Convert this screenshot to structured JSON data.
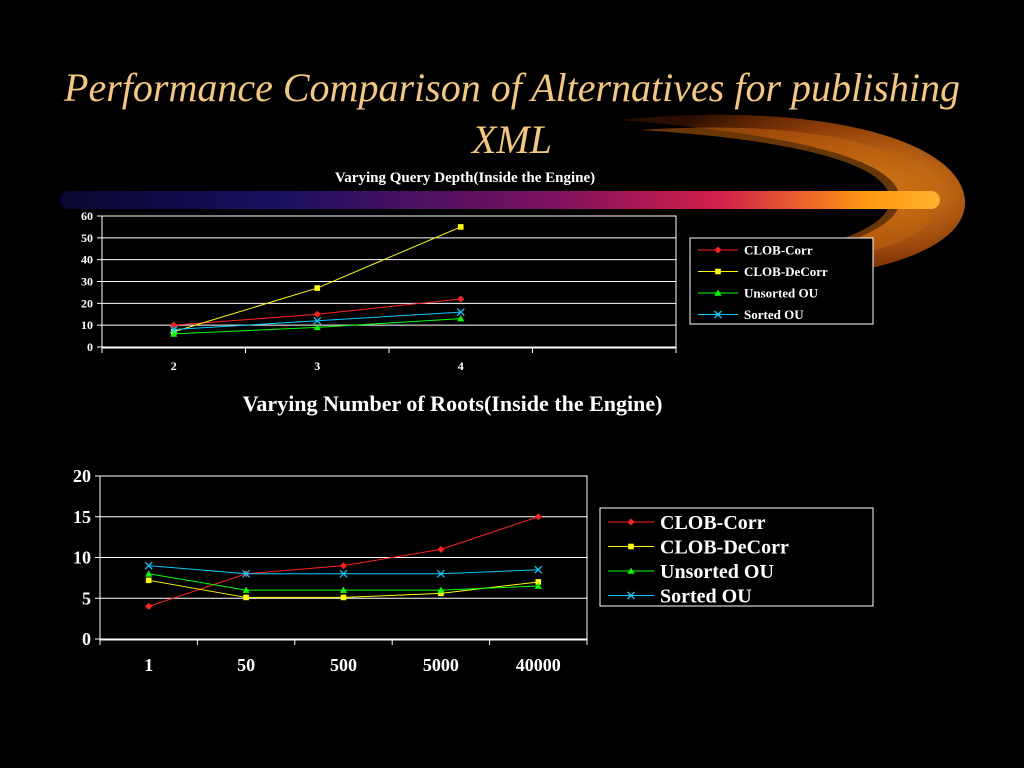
{
  "slide": {
    "title": "Performance Comparison of Alternatives for publishing XML"
  },
  "colors": {
    "title": "#F5C77A",
    "background": "#000000",
    "grid": "#FFFFFF",
    "swoosh_start": "#1A1060",
    "swoosh_mid": "#C0144A",
    "swoosh_end": "#FF9A10"
  },
  "chart_data": [
    {
      "type": "line",
      "title": "Varying Query Depth(Inside the Engine)",
      "categories": [
        "2",
        "3",
        "4"
      ],
      "ylim": [
        0,
        60
      ],
      "yticks": [
        "0",
        "10",
        "20",
        "30",
        "40",
        "50",
        "60"
      ],
      "grid": true,
      "legend": "right",
      "series": [
        {
          "name": "CLOB-Corr",
          "values": [
            10,
            15,
            22
          ],
          "color": "#FF2020",
          "marker": "diamond"
        },
        {
          "name": "CLOB-DeCorr",
          "values": [
            7,
            27,
            55
          ],
          "color": "#FFFF00",
          "marker": "square"
        },
        {
          "name": "Unsorted OU",
          "values": [
            6,
            9,
            13
          ],
          "color": "#00FF00",
          "marker": "triangle"
        },
        {
          "name": "Sorted OU",
          "values": [
            8,
            12,
            16
          ],
          "color": "#00CCFF",
          "marker": "x"
        }
      ]
    },
    {
      "type": "line",
      "title": "Varying Number of Roots(Inside the Engine)",
      "categories": [
        "1",
        "50",
        "500",
        "5000",
        "40000"
      ],
      "ylim": [
        0,
        20
      ],
      "yticks": [
        "0",
        "5",
        "10",
        "15",
        "20"
      ],
      "grid": true,
      "legend": "right",
      "series": [
        {
          "name": "CLOB-Corr",
          "values": [
            4,
            8,
            9,
            11,
            15
          ],
          "color": "#FF2020",
          "marker": "diamond"
        },
        {
          "name": "CLOB-DeCorr",
          "values": [
            7.2,
            5.1,
            5.1,
            5.6,
            7
          ],
          "color": "#FFFF00",
          "marker": "square"
        },
        {
          "name": "Unsorted OU",
          "values": [
            8,
            6,
            6,
            6,
            6.5
          ],
          "color": "#00FF00",
          "marker": "triangle"
        },
        {
          "name": "Sorted OU",
          "values": [
            9,
            8,
            8,
            8,
            8.5
          ],
          "color": "#00CCFF",
          "marker": "x"
        }
      ]
    }
  ]
}
